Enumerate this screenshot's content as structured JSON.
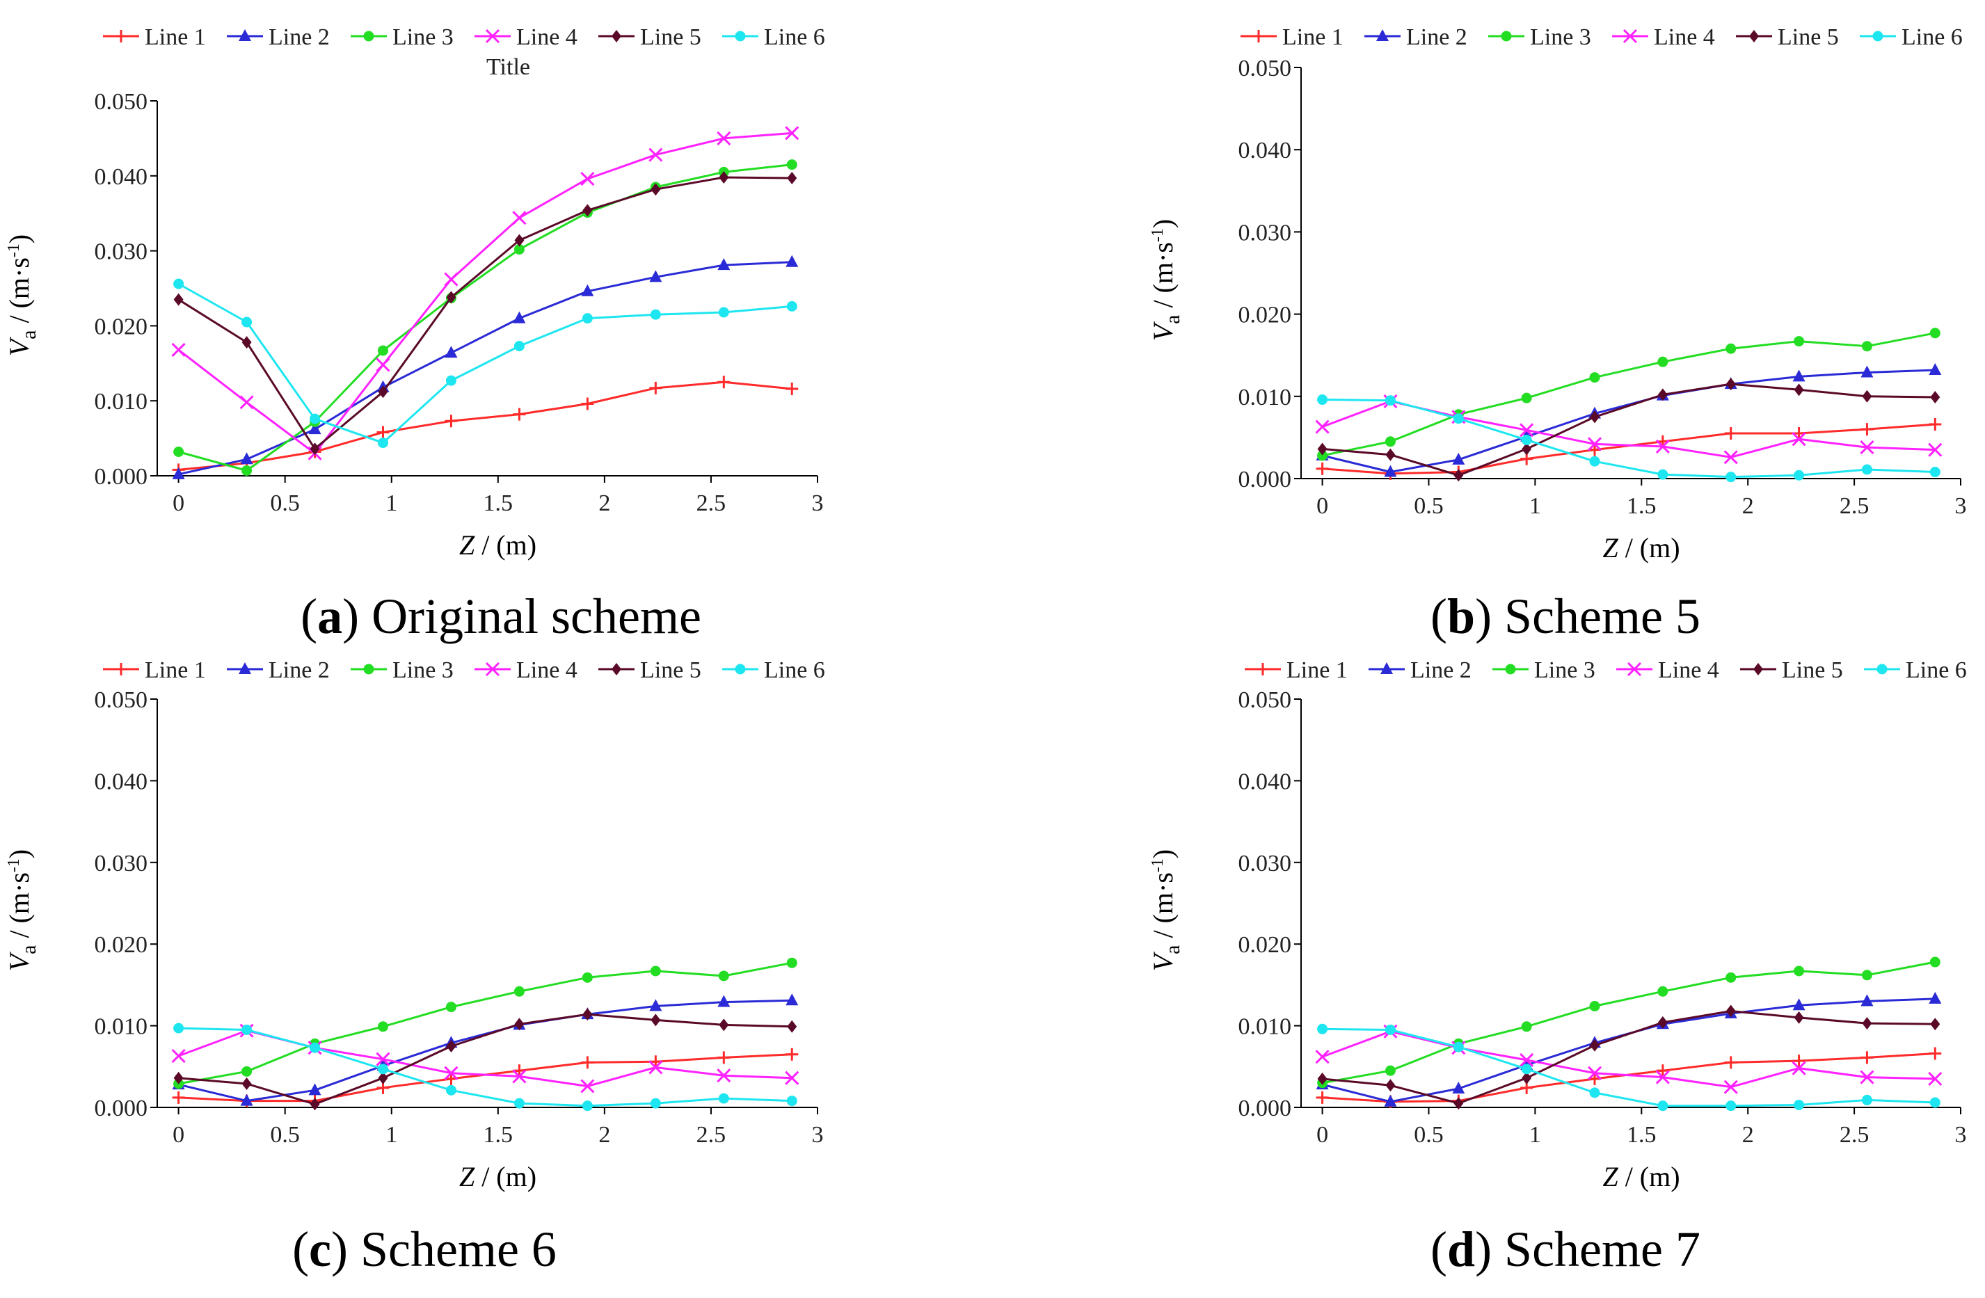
{
  "figure": {
    "panels": [
      {
        "letter": "a",
        "caption": "Original scheme"
      },
      {
        "letter": "b",
        "caption": "Scheme 5"
      },
      {
        "letter": "c",
        "caption": "Scheme 6"
      },
      {
        "letter": "d",
        "caption": "Scheme 7"
      }
    ]
  },
  "series_style": [
    {
      "name": "Line 1",
      "color": "#ff2a2a",
      "marker": "plus"
    },
    {
      "name": "Line 2",
      "color": "#2a2ad6",
      "marker": "triangle"
    },
    {
      "name": "Line 3",
      "color": "#22dd22",
      "marker": "circle"
    },
    {
      "name": "Line 4",
      "color": "#ff22ff",
      "marker": "cross"
    },
    {
      "name": "Line 5",
      "color": "#5a0a28",
      "marker": "diamond"
    },
    {
      "name": "Line 6",
      "color": "#1ee6f0",
      "marker": "circle"
    }
  ],
  "chart_data": [
    {
      "type": "line",
      "title": "Title",
      "xlabel_var": "Z",
      "xlabel_unit": " / (m)",
      "ylabel_var": "V",
      "ylabel_sub": "a",
      "ylabel_unit": " / (m·s",
      "ylabel_exp": "-1",
      "ylabel_close": ")",
      "xlim": [
        -0.1,
        3.0
      ],
      "ylim": [
        0,
        0.05
      ],
      "xticks": [
        0,
        0.5,
        1,
        1.5,
        2,
        2.5,
        3
      ],
      "xtick_labels": [
        "0",
        "0.5",
        "1",
        "1.5",
        "2",
        "2.5",
        "3"
      ],
      "yticks": [
        0,
        0.01,
        0.02,
        0.03,
        0.04,
        0.05
      ],
      "ytick_labels": [
        "0.000",
        "0.010",
        "0.020",
        "0.030",
        "0.040",
        "0.050"
      ],
      "x": [
        0,
        0.32,
        0.64,
        0.96,
        1.28,
        1.6,
        1.92,
        2.24,
        2.56,
        2.88
      ],
      "series": [
        {
          "name": "Line 1",
          "values": [
            0.0008,
            0.0017,
            0.0032,
            0.0058,
            0.0073,
            0.0082,
            0.0096,
            0.0117,
            0.0125,
            0.0116
          ]
        },
        {
          "name": "Line 2",
          "values": [
            0.0002,
            0.0022,
            0.0062,
            0.0118,
            0.0164,
            0.021,
            0.0246,
            0.0265,
            0.0281,
            0.0285
          ]
        },
        {
          "name": "Line 3",
          "values": [
            0.0032,
            0.0007,
            0.0072,
            0.0167,
            0.0237,
            0.0302,
            0.0351,
            0.0385,
            0.0405,
            0.0415
          ]
        },
        {
          "name": "Line 4",
          "values": [
            0.0168,
            0.0098,
            0.003,
            0.0148,
            0.0262,
            0.0344,
            0.0396,
            0.0428,
            0.045,
            0.0457
          ]
        },
        {
          "name": "Line 5",
          "values": [
            0.0235,
            0.0178,
            0.0036,
            0.0112,
            0.0238,
            0.0314,
            0.0354,
            0.0382,
            0.0398,
            0.0397
          ]
        },
        {
          "name": "Line 6",
          "values": [
            0.0256,
            0.0205,
            0.0076,
            0.0044,
            0.0127,
            0.0173,
            0.021,
            0.0215,
            0.0218,
            0.0226
          ]
        }
      ]
    },
    {
      "type": "line",
      "title": "",
      "xlabel_var": "Z",
      "xlabel_unit": " / (m)",
      "ylabel_var": "V",
      "ylabel_sub": "a",
      "ylabel_unit": " / (m·s",
      "ylabel_exp": "-1",
      "ylabel_close": ")",
      "xlim": [
        -0.1,
        3.0
      ],
      "ylim": [
        0,
        0.05
      ],
      "xticks": [
        0,
        0.5,
        1,
        1.5,
        2,
        2.5,
        3
      ],
      "xtick_labels": [
        "0",
        "0.5",
        "1",
        "1.5",
        "2",
        "2.5",
        "3"
      ],
      "yticks": [
        0,
        0.01,
        0.02,
        0.03,
        0.04,
        0.05
      ],
      "ytick_labels": [
        "0.000",
        "0.010",
        "0.020",
        "0.030",
        "0.040",
        "0.050"
      ],
      "x": [
        0,
        0.32,
        0.64,
        0.96,
        1.28,
        1.6,
        1.92,
        2.24,
        2.56,
        2.88
      ],
      "series": [
        {
          "name": "Line 1",
          "values": [
            0.0012,
            0.0006,
            0.0008,
            0.0024,
            0.0035,
            0.0045,
            0.0055,
            0.0055,
            0.006,
            0.0066
          ]
        },
        {
          "name": "Line 2",
          "values": [
            0.0028,
            0.0008,
            0.0023,
            0.0051,
            0.0079,
            0.0101,
            0.0115,
            0.0124,
            0.0129,
            0.0132
          ]
        },
        {
          "name": "Line 3",
          "values": [
            0.0028,
            0.0045,
            0.0078,
            0.0098,
            0.0123,
            0.0142,
            0.0158,
            0.0167,
            0.0161,
            0.0177
          ]
        },
        {
          "name": "Line 4",
          "values": [
            0.0063,
            0.0094,
            0.0075,
            0.0059,
            0.0042,
            0.0039,
            0.0026,
            0.0048,
            0.0038,
            0.0035
          ]
        },
        {
          "name": "Line 5",
          "values": [
            0.0036,
            0.0029,
            0.0004,
            0.0036,
            0.0075,
            0.0102,
            0.0115,
            0.0108,
            0.01,
            0.0099
          ]
        },
        {
          "name": "Line 6",
          "values": [
            0.0096,
            0.0095,
            0.0073,
            0.0047,
            0.0021,
            0.0005,
            0.0002,
            0.0004,
            0.0011,
            0.0008
          ]
        }
      ]
    },
    {
      "type": "line",
      "title": "",
      "xlabel_var": "Z",
      "xlabel_unit": " / (m)",
      "ylabel_var": "V",
      "ylabel_sub": "a",
      "ylabel_unit": " / (m·s",
      "ylabel_exp": "-1",
      "ylabel_close": ")",
      "xlim": [
        -0.1,
        3.0
      ],
      "ylim": [
        0,
        0.05
      ],
      "xticks": [
        0,
        0.5,
        1,
        1.5,
        2,
        2.5,
        3
      ],
      "xtick_labels": [
        "0",
        "0.5",
        "1",
        "1.5",
        "2",
        "2.5",
        "3"
      ],
      "yticks": [
        0,
        0.01,
        0.02,
        0.03,
        0.04,
        0.05
      ],
      "ytick_labels": [
        "0.000",
        "0.010",
        "0.020",
        "0.030",
        "0.040",
        "0.050"
      ],
      "x": [
        0,
        0.32,
        0.64,
        0.96,
        1.28,
        1.6,
        1.92,
        2.24,
        2.56,
        2.88
      ],
      "series": [
        {
          "name": "Line 1",
          "values": [
            0.0012,
            0.0008,
            0.0008,
            0.0024,
            0.0035,
            0.0045,
            0.0055,
            0.0056,
            0.0061,
            0.0065
          ]
        },
        {
          "name": "Line 2",
          "values": [
            0.0028,
            0.0008,
            0.0021,
            0.0051,
            0.0079,
            0.0101,
            0.0114,
            0.0124,
            0.0129,
            0.0131
          ]
        },
        {
          "name": "Line 3",
          "values": [
            0.0029,
            0.0044,
            0.0078,
            0.0099,
            0.0123,
            0.0142,
            0.0159,
            0.0167,
            0.0161,
            0.0177
          ]
        },
        {
          "name": "Line 4",
          "values": [
            0.0063,
            0.0094,
            0.0073,
            0.0059,
            0.0042,
            0.0038,
            0.0026,
            0.0049,
            0.0039,
            0.0036
          ]
        },
        {
          "name": "Line 5",
          "values": [
            0.0036,
            0.0029,
            0.0004,
            0.0036,
            0.0075,
            0.0102,
            0.0114,
            0.0107,
            0.0101,
            0.0099
          ]
        },
        {
          "name": "Line 6",
          "values": [
            0.0097,
            0.0095,
            0.0073,
            0.0047,
            0.0021,
            0.0005,
            0.0002,
            0.0005,
            0.0011,
            0.0008
          ]
        }
      ]
    },
    {
      "type": "line",
      "title": "",
      "xlabel_var": "Z",
      "xlabel_unit": " / (m)",
      "ylabel_var": "V",
      "ylabel_sub": "a",
      "ylabel_unit": " / (m·s",
      "ylabel_exp": "-1",
      "ylabel_close": ")",
      "xlim": [
        -0.1,
        3.0
      ],
      "ylim": [
        0,
        0.05
      ],
      "xticks": [
        0,
        0.5,
        1,
        1.5,
        2,
        2.5,
        3
      ],
      "xtick_labels": [
        "0",
        "0.5",
        "1",
        "1.5",
        "2",
        "2.5",
        "3"
      ],
      "yticks": [
        0,
        0.01,
        0.02,
        0.03,
        0.04,
        0.05
      ],
      "ytick_labels": [
        "0.000",
        "0.010",
        "0.020",
        "0.030",
        "0.040",
        "0.050"
      ],
      "x": [
        0,
        0.32,
        0.64,
        0.96,
        1.28,
        1.6,
        1.92,
        2.24,
        2.56,
        2.88
      ],
      "series": [
        {
          "name": "Line 1",
          "values": [
            0.0012,
            0.0007,
            0.0008,
            0.0024,
            0.0035,
            0.0045,
            0.0055,
            0.0057,
            0.0061,
            0.0066
          ]
        },
        {
          "name": "Line 2",
          "values": [
            0.0028,
            0.0007,
            0.0023,
            0.0052,
            0.0079,
            0.0102,
            0.0115,
            0.0125,
            0.013,
            0.0133
          ]
        },
        {
          "name": "Line 3",
          "values": [
            0.003,
            0.0045,
            0.0078,
            0.0099,
            0.0124,
            0.0142,
            0.0159,
            0.0167,
            0.0162,
            0.0178
          ]
        },
        {
          "name": "Line 4",
          "values": [
            0.0062,
            0.0093,
            0.0073,
            0.0058,
            0.0042,
            0.0037,
            0.0025,
            0.0048,
            0.0037,
            0.0035
          ]
        },
        {
          "name": "Line 5",
          "values": [
            0.0035,
            0.0027,
            0.0005,
            0.0036,
            0.0076,
            0.0104,
            0.0118,
            0.011,
            0.0103,
            0.0102
          ]
        },
        {
          "name": "Line 6",
          "values": [
            0.0096,
            0.0095,
            0.0074,
            0.0047,
            0.0018,
            0.0002,
            0.0002,
            0.0003,
            0.0009,
            0.0006
          ]
        }
      ]
    }
  ]
}
